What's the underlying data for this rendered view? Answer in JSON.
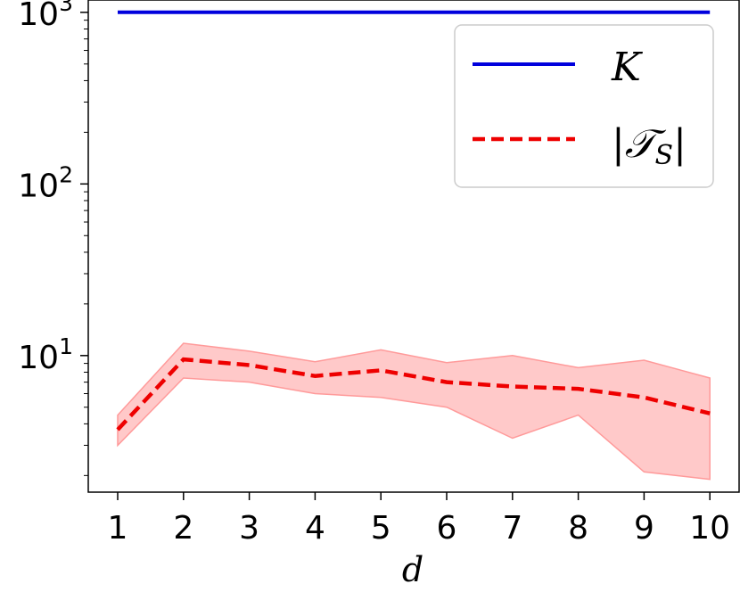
{
  "chart_data": {
    "type": "line",
    "title": "",
    "xlabel": "d",
    "ylabel": "",
    "x": [
      1,
      2,
      3,
      4,
      5,
      6,
      7,
      8,
      9,
      10
    ],
    "xticks": [
      "1",
      "2",
      "3",
      "4",
      "5",
      "6",
      "7",
      "8",
      "9",
      "10"
    ],
    "yscale": "log",
    "ylim": [
      1.6,
      1180
    ],
    "yticks": [
      {
        "base": "10",
        "exp": "1",
        "value": 10
      },
      {
        "base": "10",
        "exp": "2",
        "value": 100
      },
      {
        "base": "10",
        "exp": "3",
        "value": 1000
      }
    ],
    "grid": false,
    "legend_position": "top-right",
    "series": [
      {
        "name": "K",
        "color": "#0000dd",
        "style": "solid",
        "values": [
          1000,
          1000,
          1000,
          1000,
          1000,
          1000,
          1000,
          1000,
          1000,
          1000
        ]
      },
      {
        "name": "|T_S|",
        "color": "#ee0000",
        "style": "dashed",
        "values": [
          3.7,
          9.5,
          8.8,
          7.6,
          8.2,
          7.0,
          6.6,
          6.4,
          5.7,
          4.6
        ],
        "band_lower": [
          3.0,
          7.4,
          7.0,
          6.0,
          5.7,
          5.0,
          3.3,
          4.5,
          2.1,
          1.9
        ],
        "band_upper": [
          4.5,
          11.8,
          10.6,
          9.2,
          10.8,
          9.1,
          10.0,
          8.5,
          9.4,
          7.4
        ],
        "band_color": "#ffc9c9"
      }
    ]
  }
}
